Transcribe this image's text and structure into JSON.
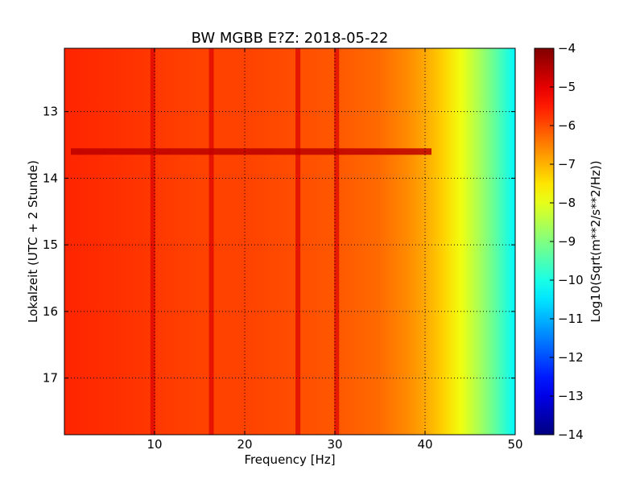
{
  "chart_data": {
    "type": "heatmap",
    "title": "BW MGBB E?Z: 2018-05-22",
    "xlabel": "Frequency [Hz]",
    "ylabel": "Lokalzeit (UTC + 2 Stunde)",
    "xlim": [
      0,
      50
    ],
    "ylim": [
      12.05,
      17.85
    ],
    "y_inverted": true,
    "x_ticks": [
      10,
      20,
      30,
      40,
      50
    ],
    "x_tick_labels": [
      "10",
      "20",
      "30",
      "40",
      "50"
    ],
    "y_ticks": [
      13,
      14,
      15,
      16,
      17
    ],
    "y_tick_labels": [
      "13",
      "14",
      "15",
      "16",
      "17"
    ],
    "grid": true,
    "colormap": "jet",
    "colorbar": {
      "label": "Log10(Sqrt(m**2/s**2/Hz))",
      "range": [
        -14,
        -4
      ],
      "ticks": [
        -4,
        -5,
        -6,
        -7,
        -8,
        -9,
        -10,
        -11,
        -12,
        -13,
        -14
      ],
      "tick_labels": [
        "−4",
        "−5",
        "−6",
        "−7",
        "−8",
        "−9",
        "−10",
        "−11",
        "−12",
        "−13",
        "−14"
      ]
    },
    "spectrum_profile": {
      "frequency_hz": [
        0,
        5,
        10,
        15,
        20,
        25,
        30,
        35,
        38,
        40,
        42,
        44,
        46,
        48,
        50
      ],
      "log10_amplitude": [
        -5.6,
        -5.7,
        -5.8,
        -5.9,
        -5.9,
        -6.0,
        -6.1,
        -6.3,
        -6.6,
        -6.9,
        -7.3,
        -7.9,
        -8.6,
        -9.4,
        -10.3
      ]
    },
    "narrowband_lines_hz": [
      9.8,
      16.3,
      25.9,
      30.2
    ],
    "broadband_event": {
      "time": 13.6,
      "log10_amplitude": -4.6
    }
  }
}
